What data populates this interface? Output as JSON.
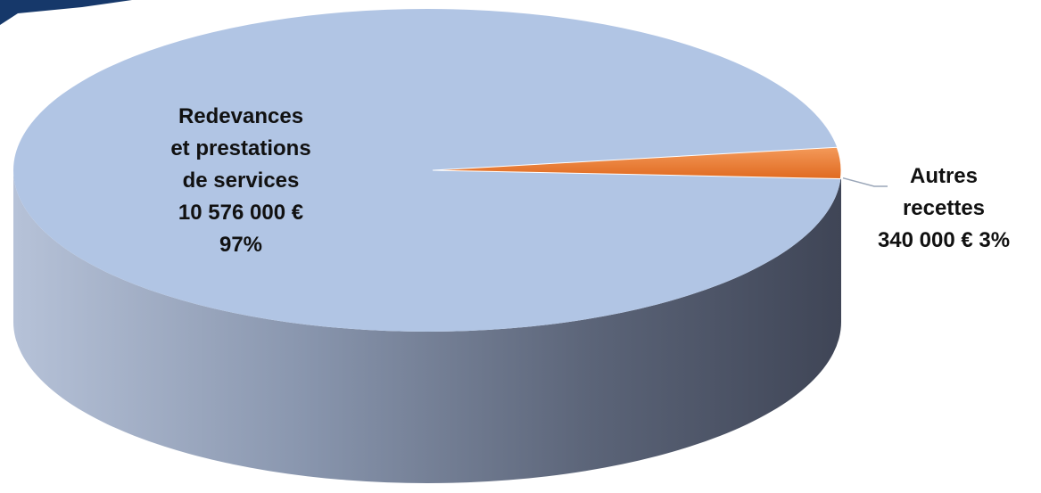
{
  "chart_data": {
    "type": "pie",
    "style": "3d",
    "title": "",
    "slices": [
      {
        "label_lines": [
          "Redevances",
          "et prestations",
          "de services",
          "10 576 000 €",
          "97%"
        ],
        "value": 10576000,
        "percent": 97,
        "color": "#b1c5e4"
      },
      {
        "label_lines": [
          "Autres",
          "recettes",
          "340 000 € 3%"
        ],
        "value": 340000,
        "percent": 3,
        "color": "#ed7d31"
      }
    ]
  },
  "colors": {
    "side_light": "#b6c2d8",
    "side_dark": "#454b5c",
    "corner_accent": "#16386a"
  }
}
